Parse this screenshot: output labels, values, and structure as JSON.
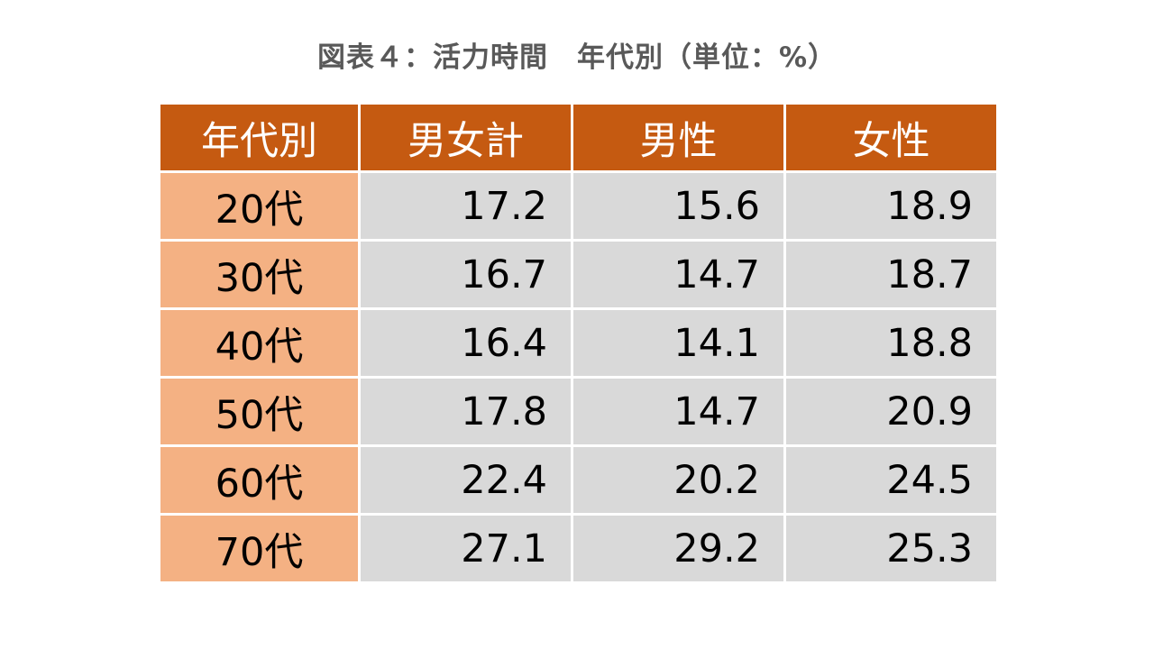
{
  "chart_data": {
    "type": "table",
    "title": "図表４：活力時間　年代別（単位：%）",
    "columns": [
      "年代別",
      "男女計",
      "男性",
      "女性"
    ],
    "rows": [
      {
        "label": "20代",
        "values": [
          "17.2",
          "15.6",
          "18.9"
        ]
      },
      {
        "label": "30代",
        "values": [
          "16.7",
          "14.7",
          "18.7"
        ]
      },
      {
        "label": "40代",
        "values": [
          "16.4",
          "14.1",
          "18.8"
        ]
      },
      {
        "label": "50代",
        "values": [
          "17.8",
          "14.7",
          "20.9"
        ]
      },
      {
        "label": "60代",
        "values": [
          "22.4",
          "20.2",
          "24.5"
        ]
      },
      {
        "label": "70代",
        "values": [
          "27.1",
          "29.2",
          "25.3"
        ]
      }
    ],
    "colors": {
      "header": "#c55a11",
      "row_label": "#f4b183",
      "cell": "#d9d9d9",
      "title": "#595959"
    }
  }
}
